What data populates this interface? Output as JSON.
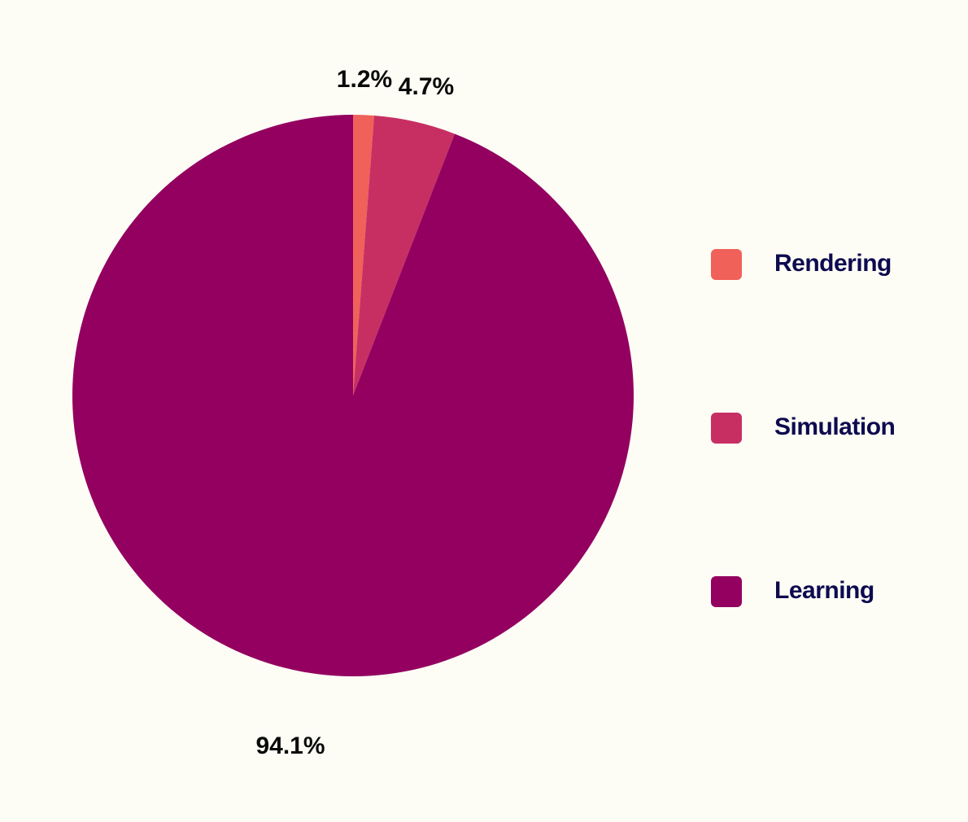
{
  "chart_data": {
    "type": "pie",
    "slices": [
      {
        "name": "Rendering",
        "value": 1.2,
        "label": "1.2%",
        "color": "#f0615a"
      },
      {
        "name": "Simulation",
        "value": 4.7,
        "label": "4.7%",
        "color": "#c72f63"
      },
      {
        "name": "Learning",
        "value": 94.1,
        "label": "94.1%",
        "color": "#930060"
      }
    ],
    "legend": {
      "placement": "right",
      "items": [
        "Rendering",
        "Simulation",
        "Learning"
      ]
    },
    "start_angle": "top",
    "direction": "clockwise",
    "background": "#fdfdf5"
  }
}
